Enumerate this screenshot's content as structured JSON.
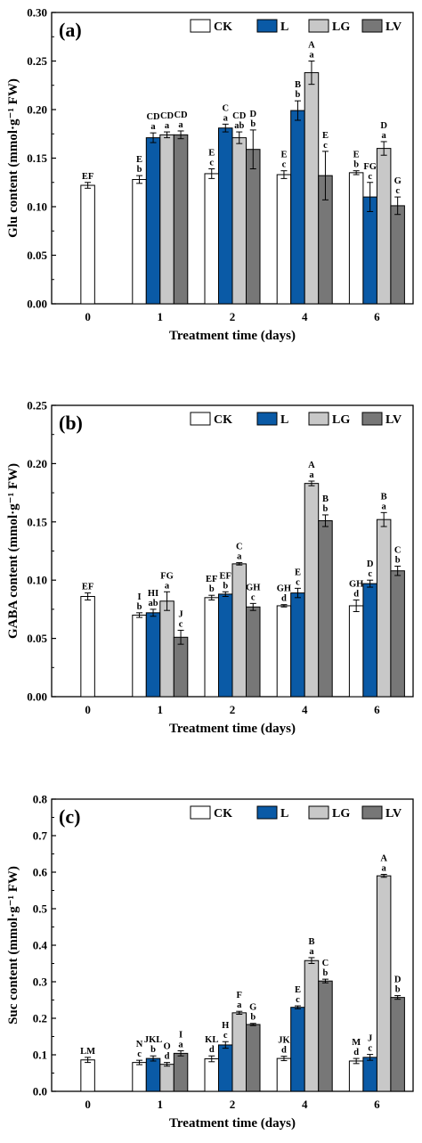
{
  "legend": {
    "CK": {
      "color": "#ffffff"
    },
    "L": {
      "color": "#0a5aa6"
    },
    "LG": {
      "color": "#c8c8c8"
    },
    "LV": {
      "color": "#777777"
    }
  },
  "chart_data": [
    {
      "type": "bar",
      "panel_label": "(a)",
      "xlabel": "Treatment time (days)",
      "ylabel": "Glu content (mmol·g⁻¹ FW)",
      "ylim": [
        0,
        0.3
      ],
      "yticks": [
        "0.00",
        "0.05",
        "0.10",
        "0.15",
        "0.20",
        "0.25",
        "0.30"
      ],
      "categories": [
        "0",
        "1",
        "2",
        "4",
        "6"
      ],
      "legend_position": "top-right",
      "series": [
        {
          "name": "CK",
          "values": [
            0.122,
            0.128,
            0.134,
            0.133,
            0.135
          ],
          "errors": [
            0.003,
            0.004,
            0.005,
            0.004,
            0.002
          ],
          "labels": [
            [
              "EF"
            ],
            [
              "E",
              "b"
            ],
            [
              "E",
              "c"
            ],
            [
              "E",
              "c"
            ],
            [
              "E",
              "b"
            ]
          ]
        },
        {
          "name": "L",
          "values": [
            null,
            0.171,
            0.181,
            0.199,
            0.11
          ],
          "errors": [
            null,
            0.005,
            0.004,
            0.01,
            0.015
          ],
          "labels": [
            null,
            [
              "CD",
              "a"
            ],
            [
              "C",
              "a"
            ],
            [
              "B",
              "b"
            ],
            [
              "FG",
              "c"
            ]
          ]
        },
        {
          "name": "LG",
          "values": [
            null,
            0.174,
            0.171,
            0.238,
            0.16
          ],
          "errors": [
            null,
            0.003,
            0.006,
            0.012,
            0.007
          ],
          "labels": [
            null,
            [
              "CD",
              "a"
            ],
            [
              "CD",
              "ab"
            ],
            [
              "A",
              "a"
            ],
            [
              "D",
              "a"
            ]
          ]
        },
        {
          "name": "LV",
          "values": [
            null,
            0.174,
            0.159,
            0.132,
            0.101
          ],
          "errors": [
            null,
            0.004,
            0.02,
            0.025,
            0.009
          ],
          "labels": [
            null,
            [
              "CD",
              "a"
            ],
            [
              "D",
              "b"
            ],
            [
              "E",
              "c"
            ],
            [
              "G",
              "c"
            ]
          ]
        }
      ]
    },
    {
      "type": "bar",
      "panel_label": "(b)",
      "xlabel": "Treatment time (days)",
      "ylabel": "GABA content (mmol·g⁻¹ FW)",
      "ylim": [
        0,
        0.25
      ],
      "yticks": [
        "0.00",
        "0.05",
        "0.10",
        "0.15",
        "0.20",
        "0.25"
      ],
      "categories": [
        "0",
        "1",
        "2",
        "4",
        "6"
      ],
      "legend_position": "top-right",
      "series": [
        {
          "name": "CK",
          "values": [
            0.086,
            0.07,
            0.085,
            0.078,
            0.078
          ],
          "errors": [
            0.003,
            0.002,
            0.002,
            0.001,
            0.005
          ],
          "labels": [
            [
              "EF"
            ],
            [
              "I",
              "b"
            ],
            [
              "EF",
              "b"
            ],
            [
              "GH",
              "d"
            ],
            [
              "GH",
              "d"
            ]
          ]
        },
        {
          "name": "L",
          "values": [
            null,
            0.072,
            0.088,
            0.089,
            0.097
          ],
          "errors": [
            null,
            0.003,
            0.002,
            0.004,
            0.003
          ],
          "labels": [
            null,
            [
              "HI",
              "ab"
            ],
            [
              "EF",
              "b"
            ],
            [
              "E",
              "c"
            ],
            [
              "D",
              "c"
            ]
          ]
        },
        {
          "name": "LG",
          "values": [
            null,
            0.082,
            0.114,
            0.183,
            0.152
          ],
          "errors": [
            null,
            0.008,
            0.001,
            0.002,
            0.006
          ],
          "labels": [
            null,
            [
              "FG",
              "a"
            ],
            [
              "C",
              "a"
            ],
            [
              "A",
              "a"
            ],
            [
              "B",
              "a"
            ]
          ]
        },
        {
          "name": "LV",
          "values": [
            null,
            0.051,
            0.077,
            0.151,
            0.108
          ],
          "errors": [
            null,
            0.006,
            0.003,
            0.005,
            0.004
          ],
          "labels": [
            null,
            [
              "J",
              "c"
            ],
            [
              "GH",
              "c"
            ],
            [
              "B",
              "b"
            ],
            [
              "C",
              "b"
            ]
          ]
        }
      ]
    },
    {
      "type": "bar",
      "panel_label": "(c)",
      "xlabel": "Treatment time (days)",
      "ylabel": "Suc content (mmol·g⁻¹ FW)",
      "ylim": [
        0,
        0.8
      ],
      "yticks": [
        "0.0",
        "0.1",
        "0.2",
        "0.3",
        "0.4",
        "0.5",
        "0.6",
        "0.7",
        "0.8"
      ],
      "categories": [
        "0",
        "1",
        "2",
        "4",
        "6"
      ],
      "legend_position": "top-right",
      "series": [
        {
          "name": "CK",
          "values": [
            0.086,
            0.079,
            0.089,
            0.09,
            0.083
          ],
          "errors": [
            0.007,
            0.006,
            0.008,
            0.006,
            0.007
          ],
          "labels": [
            [
              "LM"
            ],
            [
              "N",
              "c"
            ],
            [
              "KL",
              "d"
            ],
            [
              "JK",
              "d"
            ],
            [
              "M",
              "d"
            ]
          ]
        },
        {
          "name": "L",
          "values": [
            null,
            0.09,
            0.127,
            0.23,
            0.093
          ],
          "errors": [
            null,
            0.007,
            0.009,
            0.004,
            0.008
          ],
          "labels": [
            null,
            [
              "JKL",
              "b"
            ],
            [
              "H",
              "c"
            ],
            [
              "E",
              "c"
            ],
            [
              "J",
              "c"
            ]
          ]
        },
        {
          "name": "LG",
          "values": [
            null,
            0.074,
            0.215,
            0.358,
            0.59
          ],
          "errors": [
            null,
            0.005,
            0.004,
            0.008,
            0.004
          ],
          "labels": [
            null,
            [
              "O",
              "d"
            ],
            [
              "F",
              "a"
            ],
            [
              "B",
              "a"
            ],
            [
              "A",
              "a"
            ]
          ]
        },
        {
          "name": "LV",
          "values": [
            null,
            0.104,
            0.183,
            0.302,
            0.257
          ],
          "errors": [
            null,
            0.007,
            0.003,
            0.005,
            0.005
          ],
          "labels": [
            null,
            [
              "I",
              "a"
            ],
            [
              "G",
              "b"
            ],
            [
              "C",
              "b"
            ],
            [
              "D",
              "b"
            ]
          ]
        }
      ]
    }
  ]
}
